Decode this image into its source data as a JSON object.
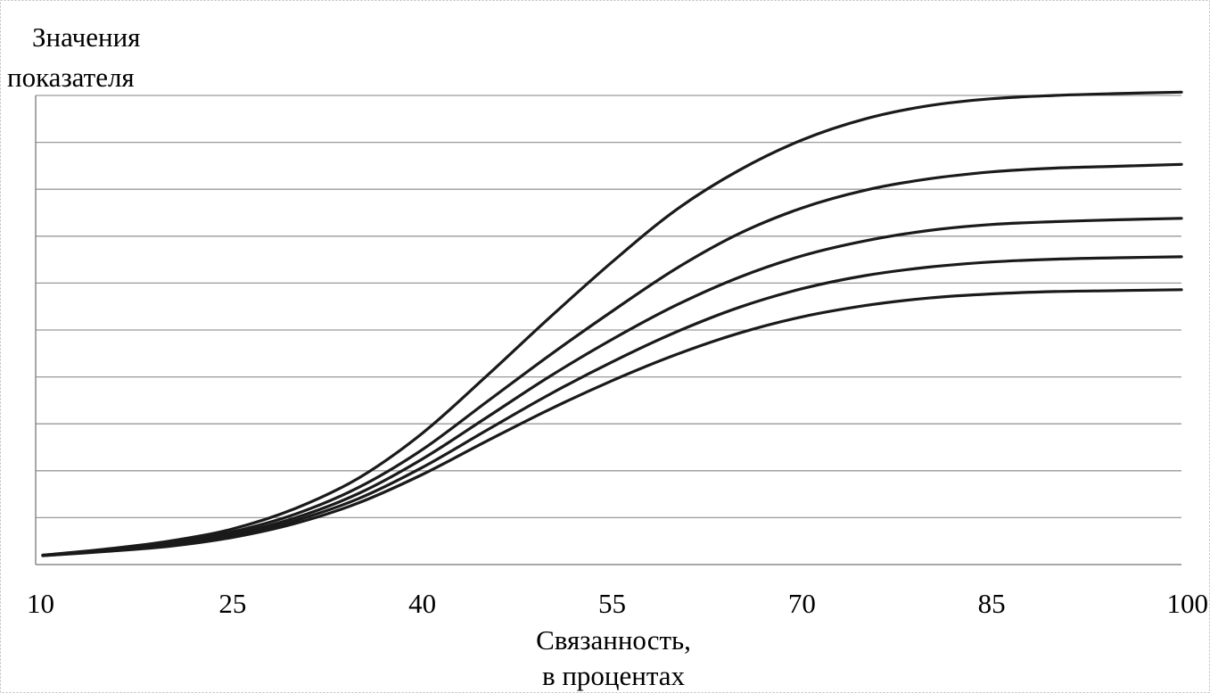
{
  "chart_data": {
    "type": "line",
    "ylabel": [
      "Значения",
      "показателя"
    ],
    "xlabel": [
      "Связанность,",
      "в процентах"
    ],
    "x_ticks": [
      10,
      25,
      40,
      55,
      70,
      85,
      100
    ],
    "xlim": [
      10,
      100
    ],
    "ylim": [
      0,
      10
    ],
    "y_gridlines": 10,
    "y_tick_labels": "none",
    "grid": true,
    "x": [
      10,
      15,
      20,
      25,
      30,
      35,
      40,
      45,
      50,
      55,
      60,
      65,
      70,
      75,
      80,
      85,
      90,
      95,
      100
    ],
    "series": [
      {
        "values": [
          0.2,
          0.33,
          0.5,
          0.76,
          1.2,
          1.85,
          2.8,
          4.0,
          5.25,
          6.45,
          7.55,
          8.4,
          9.05,
          9.5,
          9.78,
          9.93,
          10.0,
          10.04,
          10.07
        ]
      },
      {
        "values": [
          0.2,
          0.31,
          0.46,
          0.7,
          1.08,
          1.65,
          2.45,
          3.45,
          4.45,
          5.4,
          6.3,
          7.05,
          7.6,
          7.98,
          8.22,
          8.37,
          8.45,
          8.49,
          8.53
        ]
      },
      {
        "values": [
          0.2,
          0.3,
          0.43,
          0.65,
          1.0,
          1.52,
          2.25,
          3.12,
          4.0,
          4.8,
          5.52,
          6.12,
          6.58,
          6.9,
          7.12,
          7.25,
          7.31,
          7.35,
          7.38
        ]
      },
      {
        "values": [
          0.19,
          0.29,
          0.41,
          0.61,
          0.94,
          1.41,
          2.07,
          2.85,
          3.62,
          4.32,
          4.95,
          5.48,
          5.88,
          6.16,
          6.34,
          6.45,
          6.51,
          6.54,
          6.56
        ]
      },
      {
        "values": [
          0.19,
          0.28,
          0.39,
          0.58,
          0.88,
          1.32,
          1.92,
          2.62,
          3.3,
          3.92,
          4.47,
          4.93,
          5.28,
          5.52,
          5.68,
          5.77,
          5.82,
          5.84,
          5.86
        ]
      }
    ]
  }
}
